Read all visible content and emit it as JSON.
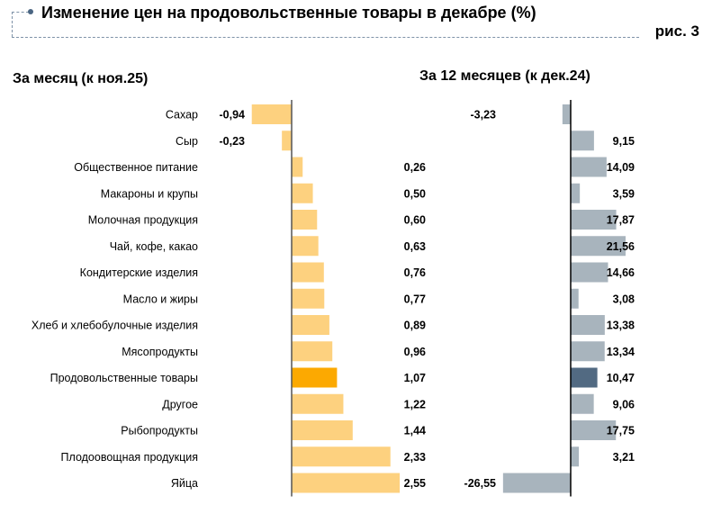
{
  "header": {
    "title": "Изменение цен на продовольственные товары в декабре (%)",
    "figure_label": "рис. 3"
  },
  "chart_data": [
    {
      "type": "bar",
      "orientation": "horizontal",
      "title": "За месяц (к ноя.25)",
      "categories": [
        "Сахар",
        "Сыр",
        "Общественное питание",
        "Макароны и крупы",
        "Молочная продукция",
        "Чай, кофе, какао",
        "Кондитерские изделия",
        "Масло и жиры",
        "Хлеб и хлебобулочные изделия",
        "Мясопродукты",
        "Продовольственные товары",
        "Другое",
        "Рыбопродукты",
        "Плодоовощная продукция",
        "Яйца"
      ],
      "values": [
        -0.94,
        -0.23,
        0.26,
        0.5,
        0.6,
        0.63,
        0.76,
        0.77,
        0.89,
        0.96,
        1.07,
        1.22,
        1.44,
        2.33,
        2.55
      ],
      "labels": [
        "-0,94",
        "-0,23",
        "0,26",
        "0,50",
        "0,60",
        "0,63",
        "0,76",
        "0,77",
        "0,89",
        "0,96",
        "1,07",
        "1,22",
        "1,44",
        "2,33",
        "2,55"
      ],
      "highlight_category": "Продовольственные товары",
      "color": "#fdd17f",
      "highlight_color": "#fca901",
      "xlim": [
        -0.94,
        2.55
      ],
      "grid": false
    },
    {
      "type": "bar",
      "orientation": "horizontal",
      "title": "За 12 месяцев (к дек.24)",
      "categories": [
        "Сахар",
        "Сыр",
        "Общественное питание",
        "Макароны и крупы",
        "Молочная продукция",
        "Чай, кофе, какао",
        "Кондитерские изделия",
        "Масло и жиры",
        "Хлеб и хлебобулочные изделия",
        "Мясопродукты",
        "Продовольственные товары",
        "Другое",
        "Рыбопродукты",
        "Плодоовощная продукция",
        "Яйца"
      ],
      "values": [
        -3.23,
        9.15,
        14.09,
        3.59,
        17.87,
        21.56,
        14.66,
        3.08,
        13.38,
        13.34,
        10.47,
        9.06,
        17.75,
        3.21,
        -26.55
      ],
      "labels": [
        "-3,23",
        "9,15",
        "14,09",
        "3,59",
        "17,87",
        "21,56",
        "14,66",
        "3,08",
        "13,38",
        "13,34",
        "10,47",
        "9,06",
        "17,75",
        "3,21",
        "-26,55"
      ],
      "highlight_category": "Продовольственные товары",
      "color": "#a8b4bd",
      "highlight_color": "#526a82",
      "xlim": [
        -26.55,
        21.56
      ],
      "grid": false
    }
  ]
}
